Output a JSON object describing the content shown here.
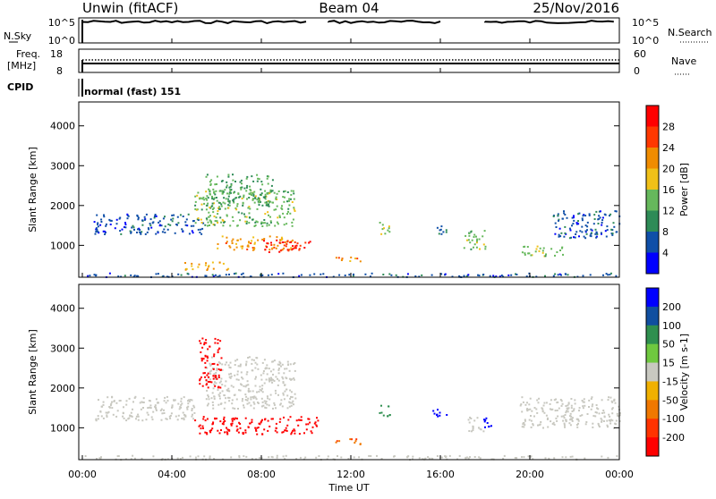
{
  "header": {
    "station": "Unwin (fitACF)",
    "beam": "Beam 04",
    "date": "25/Nov/2016"
  },
  "top_panels": {
    "nsky_label": "N.Sky",
    "nsky_ticks": [
      "10^5",
      "10^0"
    ],
    "nsearch_label": "N.Search",
    "nsearch_ticks": [
      "10^5",
      "10^0"
    ],
    "freq_label_1": "Freq.",
    "freq_label_2": "[MHz]",
    "freq_ticks": [
      "18",
      "8"
    ],
    "nave_label": "Nave",
    "nave_ticks": [
      "60",
      "0"
    ],
    "cpid_label": "CPID",
    "cpid_text": "normal (fast) 151"
  },
  "x_axis": {
    "label": "Time UT",
    "ticks": [
      "00:00",
      "04:00",
      "08:00",
      "12:00",
      "16:00",
      "20:00",
      "00:00"
    ]
  },
  "colors": {
    "power": [
      "#0000ff",
      "#0f4fa8",
      "#2e8b57",
      "#66b85c",
      "#f0c018",
      "#f08c00",
      "#ff3800",
      "#ff0000"
    ],
    "velocity": [
      "#0000ff",
      "#104fa0",
      "#2f8f4f",
      "#6fc83f",
      "#c8c8c0",
      "#f0b000",
      "#f07800",
      "#ff3300",
      "#ff0000"
    ]
  },
  "chart_data": [
    {
      "type": "heatmap",
      "title": "Power",
      "xlabel": "Time UT",
      "ylabel": "Slant Range [km]",
      "yticks": [
        "1000",
        "2000",
        "3000",
        "4000"
      ],
      "ylim": [
        200,
        4600
      ],
      "xlim": [
        0,
        24
      ],
      "colorbar_label": "Power [dB]",
      "colorbar_ticks": [
        "4",
        "8",
        "12",
        "16",
        "20",
        "24",
        "28"
      ],
      "clim": [
        0,
        32
      ],
      "regions": [
        {
          "t": [
            0.5,
            5.5
          ],
          "r": [
            1300,
            1800
          ],
          "v": 6
        },
        {
          "t": [
            5,
            9.5
          ],
          "r": [
            1500,
            2400
          ],
          "v": 14
        },
        {
          "t": [
            5.5,
            8.5
          ],
          "r": [
            2000,
            2800
          ],
          "v": 12
        },
        {
          "t": [
            6,
            9.5
          ],
          "r": [
            900,
            1250
          ],
          "v": 22
        },
        {
          "t": [
            8,
            10.2
          ],
          "r": [
            850,
            1150
          ],
          "v": 28
        },
        {
          "t": [
            4.5,
            6.5
          ],
          "r": [
            400,
            600
          ],
          "v": 20
        },
        {
          "t": [
            11.3,
            12.5
          ],
          "r": [
            600,
            750
          ],
          "v": 22
        },
        {
          "t": [
            13.2,
            13.8
          ],
          "r": [
            1300,
            1600
          ],
          "v": 14
        },
        {
          "t": [
            15.5,
            16.3
          ],
          "r": [
            1300,
            1500
          ],
          "v": 8
        },
        {
          "t": [
            17,
            18
          ],
          "r": [
            900,
            1400
          ],
          "v": 14
        },
        {
          "t": [
            19.5,
            21.5
          ],
          "r": [
            750,
            1000
          ],
          "v": 14
        },
        {
          "t": [
            21,
            24
          ],
          "r": [
            1200,
            1900
          ],
          "v": 6
        },
        {
          "t": [
            0,
            24
          ],
          "r": [
            220,
            320
          ],
          "v": 6
        }
      ]
    },
    {
      "type": "heatmap",
      "title": "Velocity",
      "xlabel": "Time UT",
      "ylabel": "Slant Range [km]",
      "yticks": [
        "1000",
        "2000",
        "3000",
        "4000"
      ],
      "ylim": [
        200,
        4600
      ],
      "xlim": [
        0,
        24
      ],
      "colorbar_label": "Velocity [m s-1]",
      "colorbar_ticks": [
        "200",
        "100",
        "50",
        "15",
        "-15",
        "-50",
        "-100",
        "-200"
      ],
      "clim": [
        -250,
        250
      ],
      "regions": [
        {
          "t": [
            0.5,
            5
          ],
          "r": [
            1200,
            1800
          ],
          "v": 0
        },
        {
          "t": [
            5.5,
            9.5
          ],
          "r": [
            1500,
            2800
          ],
          "v": 0
        },
        {
          "t": [
            5,
            10.5
          ],
          "r": [
            850,
            1300
          ],
          "v": -220
        },
        {
          "t": [
            5.2,
            6.2
          ],
          "r": [
            2000,
            3300
          ],
          "v": -220
        },
        {
          "t": [
            11.3,
            12.5
          ],
          "r": [
            600,
            750
          ],
          "v": -130
        },
        {
          "t": [
            13.2,
            13.8
          ],
          "r": [
            1300,
            1600
          ],
          "v": 120
        },
        {
          "t": [
            15.5,
            16.3
          ],
          "r": [
            1300,
            1500
          ],
          "v": 230
        },
        {
          "t": [
            17.2,
            17.9
          ],
          "r": [
            900,
            1300
          ],
          "v": 0
        },
        {
          "t": [
            17.9,
            18.3
          ],
          "r": [
            900,
            1300
          ],
          "v": 230
        },
        {
          "t": [
            19.5,
            24
          ],
          "r": [
            1000,
            1800
          ],
          "v": 0
        },
        {
          "t": [
            0,
            24
          ],
          "r": [
            220,
            320
          ],
          "v": 0
        }
      ]
    }
  ]
}
